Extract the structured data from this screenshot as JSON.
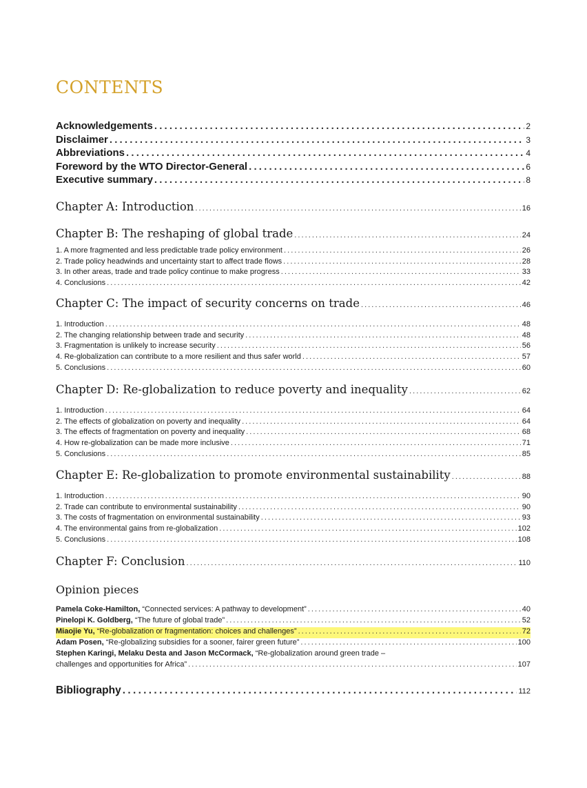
{
  "title": "CONTENTS",
  "front_matter": [
    {
      "label": "Acknowledgements",
      "page": "2"
    },
    {
      "label": "Disclaimer",
      "page": "3"
    },
    {
      "label": "Abbreviations",
      "page": "4"
    },
    {
      "label": "Foreword by the WTO Director-General",
      "page": "6"
    },
    {
      "label": "Executive summary",
      "page": "8"
    }
  ],
  "chapters": [
    {
      "label": "Chapter A: Introduction",
      "page": "16",
      "items": []
    },
    {
      "label": "Chapter B: The reshaping of global trade",
      "page": "24",
      "items": [
        {
          "label": "1. A more fragmented and less predictable trade policy environment",
          "page": "26"
        },
        {
          "label": "2. Trade policy headwinds and uncertainty start to affect trade flows",
          "page": "28"
        },
        {
          "label": "3. In other areas, trade and trade policy continue to make progress",
          "page": "33"
        },
        {
          "label": "4. Conclusions",
          "page": "42"
        }
      ]
    },
    {
      "label": "Chapter C: The impact of security concerns on trade",
      "page": "46",
      "items": [
        {
          "label": "1. Introduction",
          "page": "48"
        },
        {
          "label": "2. The changing relationship between trade and security",
          "page": "48"
        },
        {
          "label": "3. Fragmentation is unlikely to increase security",
          "page": "56"
        },
        {
          "label": "4. Re-globalization can contribute to a more resilient and thus safer world",
          "page": "57"
        },
        {
          "label": "5. Conclusions",
          "page": "60"
        }
      ]
    },
    {
      "label": "Chapter D: Re-globalization to reduce poverty and inequality",
      "page": "62",
      "items": [
        {
          "label": "1. Introduction",
          "page": "64"
        },
        {
          "label": "2. The effects of globalization on poverty and inequality",
          "page": "64"
        },
        {
          "label": "3. The effects of fragmentation on poverty and inequality",
          "page": "68"
        },
        {
          "label": "4. How re-globalization can be made more inclusive",
          "page": "71"
        },
        {
          "label": "5. Conclusions",
          "page": "85"
        }
      ]
    },
    {
      "label": "Chapter E: Re-globalization to promote environmental sustainability",
      "page": "88",
      "items": [
        {
          "label": "1. Introduction",
          "page": "90"
        },
        {
          "label": "2. Trade can contribute to environmental sustainability",
          "page": "90"
        },
        {
          "label": "3. The costs of fragmentation on environmental sustainability",
          "page": "93"
        },
        {
          "label": "4. The environmental gains from re-globalization",
          "page": "102"
        },
        {
          "label": "5. Conclusions",
          "page": "108"
        }
      ]
    },
    {
      "label": "Chapter F: Conclusion",
      "page": "110",
      "items": []
    }
  ],
  "opinion": {
    "heading": "Opinion pieces",
    "highlight_color": "#fdf77a",
    "items": [
      {
        "author": "Pamela Coke-Hamilton,",
        "title": "“Connected services: A pathway to development”",
        "page": "40",
        "highlighted": false
      },
      {
        "author": "Pinelopi K. Goldberg,",
        "title": "“The future of global trade”",
        "page": "52",
        "highlighted": false
      },
      {
        "author": "Miaojie Yu,",
        "title": "“Re-globalization or fragmentation: choices and challenges”",
        "page": "72",
        "highlighted": true
      },
      {
        "author": "Adam Posen,",
        "title": "“Re-globalizing subsidies for a sooner, fairer green future”",
        "page": "100",
        "highlighted": false
      },
      {
        "author": "Stephen Karingi, Melaku Desta and Jason McCormack,",
        "title": "“Re-globalization around green trade –",
        "title_cont": "challenges and opportunities for Africa”",
        "page": "107",
        "highlighted": false
      }
    ]
  },
  "bibliography": {
    "label": "Bibliography",
    "page": "112"
  },
  "colors": {
    "title": "#d4a12a",
    "text": "#1a1a1a"
  }
}
